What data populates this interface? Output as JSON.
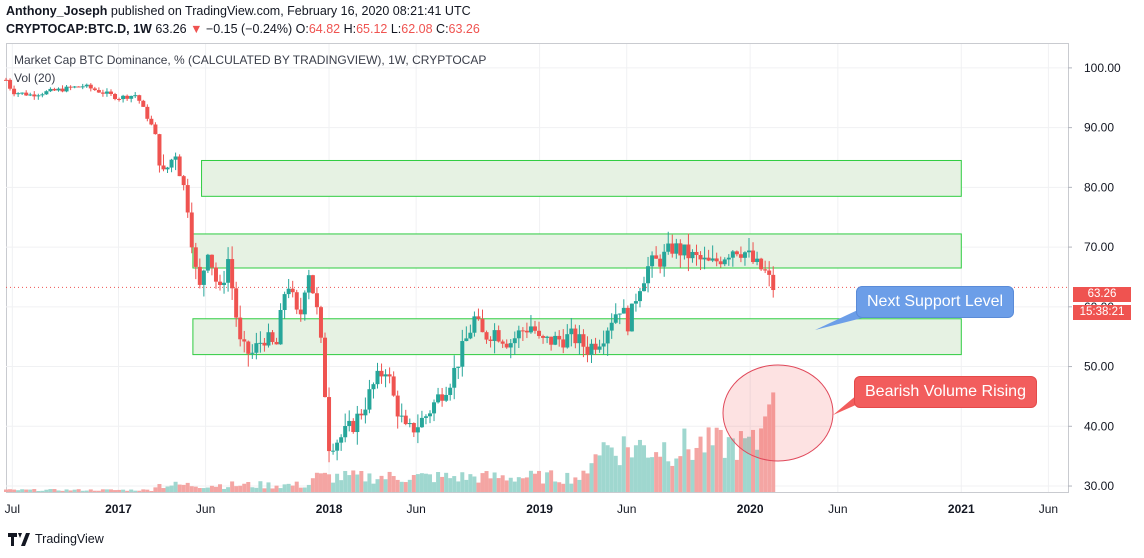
{
  "header": {
    "author": "Anthony_Joseph",
    "published_text": "published on TradingView.com, February 16, 2020 08:21:41 UTC",
    "symbol": "CRYPTOCAP:BTC.D, 1W",
    "last": "63.26",
    "change_arrow": "▼",
    "change": "−0.15 (−0.24%)",
    "open_label": "O:",
    "open": "64.82",
    "high_label": "H:",
    "high": "65.12",
    "low_label": "L:",
    "low": "62.08",
    "close_label": "C:",
    "close": "63.26"
  },
  "footer": {
    "brand": "TradingView"
  },
  "colors": {
    "up": "#26a69a",
    "down": "#ef5350",
    "zone_fill": "#e6f2e3",
    "zone_border": "#2ecc40",
    "callout_blue": "#6c9ee8",
    "callout_red": "#f25d5d"
  },
  "chart_data": {
    "type": "candlestick",
    "title": "Market Cap BTC Dominance, % (CALCULATED BY TRADINGVIEW), 1W, CRYPTOCAP",
    "volume_label": "Vol (20)",
    "y_axis": {
      "range": [
        29,
        104
      ],
      "ticks": [
        "100.00",
        "90.00",
        "80.00",
        "70.00",
        "60.00",
        "50.00",
        "40.00",
        "30.00"
      ]
    },
    "x_axis": {
      "range": [
        "2016-06-20",
        "2021-07-05"
      ],
      "ticks": [
        {
          "date": "2016-07-01",
          "label": "Jul"
        },
        {
          "date": "2017-01-01",
          "label": "2017"
        },
        {
          "date": "2017-06-01",
          "label": "Jun"
        },
        {
          "date": "2018-01-01",
          "label": "2018"
        },
        {
          "date": "2018-06-01",
          "label": "Jun"
        },
        {
          "date": "2019-01-01",
          "label": "2019"
        },
        {
          "date": "2019-06-01",
          "label": "Jun"
        },
        {
          "date": "2020-01-01",
          "label": "2020"
        },
        {
          "date": "2020-06-01",
          "label": "Jun"
        },
        {
          "date": "2021-01-01",
          "label": "2021"
        },
        {
          "date": "2021-06-01",
          "label": "Jun"
        }
      ]
    },
    "closes": [
      {
        "date": "2016-06-20",
        "close": 98
      },
      {
        "date": "2016-07-01",
        "close": 96
      },
      {
        "date": "2016-08-01",
        "close": 95.5
      },
      {
        "date": "2016-09-01",
        "close": 96
      },
      {
        "date": "2016-10-01",
        "close": 96.5
      },
      {
        "date": "2016-11-01",
        "close": 97
      },
      {
        "date": "2016-12-01",
        "close": 96
      },
      {
        "date": "2017-01-01",
        "close": 95
      },
      {
        "date": "2017-02-01",
        "close": 95.5
      },
      {
        "date": "2017-03-01",
        "close": 90
      },
      {
        "date": "2017-03-20",
        "close": 82
      },
      {
        "date": "2017-04-10",
        "close": 86
      },
      {
        "date": "2017-05-01",
        "close": 77
      },
      {
        "date": "2017-05-20",
        "close": 62
      },
      {
        "date": "2017-06-05",
        "close": 70
      },
      {
        "date": "2017-06-25",
        "close": 62
      },
      {
        "date": "2017-07-10",
        "close": 68
      },
      {
        "date": "2017-08-01",
        "close": 53
      },
      {
        "date": "2017-08-20",
        "close": 52
      },
      {
        "date": "2017-09-10",
        "close": 55
      },
      {
        "date": "2017-10-01",
        "close": 53
      },
      {
        "date": "2017-10-20",
        "close": 65
      },
      {
        "date": "2017-11-10",
        "close": 57
      },
      {
        "date": "2017-11-25",
        "close": 67
      },
      {
        "date": "2017-12-10",
        "close": 60
      },
      {
        "date": "2017-12-20",
        "close": 52
      },
      {
        "date": "2018-01-01",
        "close": 37
      },
      {
        "date": "2018-01-20",
        "close": 38
      },
      {
        "date": "2018-02-10",
        "close": 40
      },
      {
        "date": "2018-03-01",
        "close": 43
      },
      {
        "date": "2018-03-20",
        "close": 47
      },
      {
        "date": "2018-04-10",
        "close": 50
      },
      {
        "date": "2018-04-25",
        "close": 44
      },
      {
        "date": "2018-05-15",
        "close": 39
      },
      {
        "date": "2018-06-01",
        "close": 40
      },
      {
        "date": "2018-06-20",
        "close": 42
      },
      {
        "date": "2018-07-10",
        "close": 45
      },
      {
        "date": "2018-08-01",
        "close": 48
      },
      {
        "date": "2018-08-25",
        "close": 54
      },
      {
        "date": "2018-09-10",
        "close": 58
      },
      {
        "date": "2018-09-25",
        "close": 55
      },
      {
        "date": "2018-10-15",
        "close": 56
      },
      {
        "date": "2018-11-10",
        "close": 54
      },
      {
        "date": "2018-12-01",
        "close": 56
      },
      {
        "date": "2018-12-20",
        "close": 57
      },
      {
        "date": "2019-01-01",
        "close": 54
      },
      {
        "date": "2019-02-01",
        "close": 54.5
      },
      {
        "date": "2019-03-01",
        "close": 55
      },
      {
        "date": "2019-03-25",
        "close": 53
      },
      {
        "date": "2019-04-20",
        "close": 55
      },
      {
        "date": "2019-05-05",
        "close": 58
      },
      {
        "date": "2019-05-20",
        "close": 60
      },
      {
        "date": "2019-06-05",
        "close": 57
      },
      {
        "date": "2019-06-20",
        "close": 63
      },
      {
        "date": "2019-07-10",
        "close": 67
      },
      {
        "date": "2019-08-01",
        "close": 68
      },
      {
        "date": "2019-08-20",
        "close": 70
      },
      {
        "date": "2019-09-10",
        "close": 69
      },
      {
        "date": "2019-10-01",
        "close": 68
      },
      {
        "date": "2019-10-25",
        "close": 67
      },
      {
        "date": "2019-11-15",
        "close": 68.5
      },
      {
        "date": "2019-12-05",
        "close": 70
      },
      {
        "date": "2019-12-25",
        "close": 69
      },
      {
        "date": "2020-01-10",
        "close": 67
      },
      {
        "date": "2020-01-25",
        "close": 66
      },
      {
        "date": "2020-02-10",
        "close": 63.26
      }
    ],
    "zones": [
      {
        "name": "upper zone",
        "low": 78.5,
        "high": 84.5
      },
      {
        "name": "middle zone",
        "low": 66.5,
        "high": 72.2
      },
      {
        "name": "support zone",
        "low": 52,
        "high": 58
      }
    ],
    "last_price": "63.26",
    "countdown": "15:38:21",
    "annotations": {
      "support": "Next Support Level",
      "volume": "Bearish Volume Rising"
    }
  }
}
